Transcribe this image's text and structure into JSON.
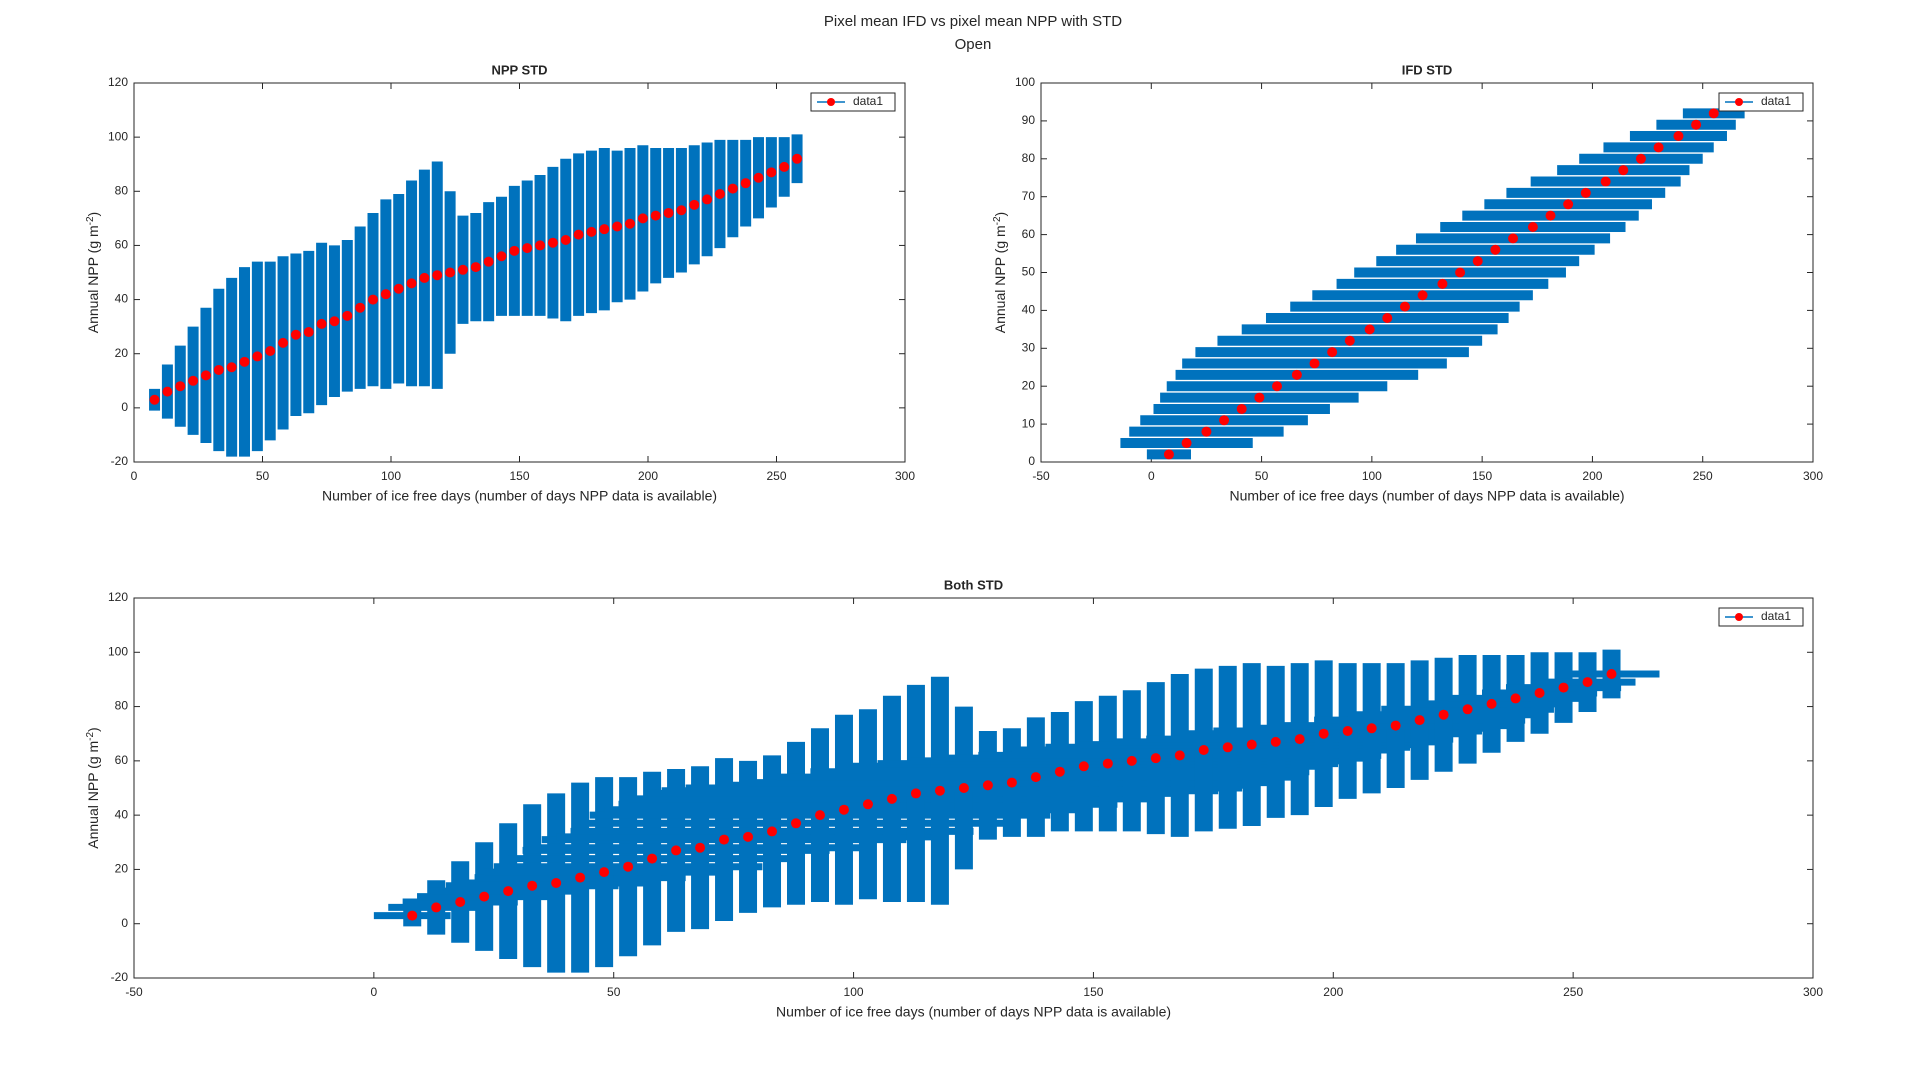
{
  "title": "Pixel mean IFD vs pixel mean NPP with STD",
  "subtitle": "Open",
  "chart_data": [
    {
      "type": "errorbar",
      "title": "NPP STD",
      "xlabel": "Number of ice free days (number of days NPP data is available)",
      "ylabel": [
        "Annual NPP (g m",
        "-2",
        ")"
      ],
      "xlim": [
        0,
        300
      ],
      "xticks": [
        0,
        50,
        100,
        150,
        200,
        250,
        300
      ],
      "ylim": [
        -20,
        120
      ],
      "yticks": [
        -20,
        0,
        20,
        40,
        60,
        80,
        100,
        120
      ],
      "grid": false,
      "legend": "northeast",
      "series": [
        {
          "name": "data1",
          "color": "#ff0000",
          "error_color": "#0072bd",
          "x": [
            8,
            13,
            18,
            23,
            28,
            33,
            38,
            43,
            48,
            53,
            58,
            63,
            68,
            73,
            78,
            83,
            88,
            93,
            98,
            103,
            108,
            113,
            118,
            123,
            128,
            133,
            138,
            143,
            148,
            153,
            158,
            163,
            168,
            173,
            178,
            183,
            188,
            193,
            198,
            203,
            208,
            213,
            218,
            223,
            228,
            233,
            238,
            243,
            248,
            253,
            258
          ],
          "values": [
            3,
            6,
            8,
            10,
            12,
            14,
            15,
            17,
            19,
            21,
            24,
            27,
            28,
            31,
            32,
            34,
            37,
            40,
            42,
            44,
            46,
            48,
            49,
            50,
            51,
            52,
            54,
            56,
            58,
            59,
            60,
            61,
            62,
            64,
            65,
            66,
            67,
            68,
            70,
            71,
            72,
            73,
            75,
            77,
            79,
            81,
            83,
            85,
            87,
            89,
            92
          ],
          "yerr": [
            4,
            10,
            15,
            20,
            25,
            30,
            33,
            35,
            35,
            33,
            32,
            30,
            30,
            30,
            28,
            28,
            30,
            32,
            35,
            35,
            38,
            40,
            42,
            30,
            20,
            20,
            22,
            22,
            24,
            25,
            26,
            28,
            30,
            30,
            30,
            30,
            28,
            28,
            27,
            25,
            24,
            23,
            22,
            21,
            20,
            18,
            16,
            15,
            13,
            11,
            9
          ]
        }
      ]
    },
    {
      "type": "errorbar",
      "title": "IFD STD",
      "xlabel": "Number of ice free days (number of days NPP data is available)",
      "ylabel": [
        "Annual NPP (g m",
        "-2",
        ")"
      ],
      "xlim": [
        -50,
        300
      ],
      "xticks": [
        -50,
        0,
        50,
        100,
        150,
        200,
        250,
        300
      ],
      "ylim": [
        0,
        100
      ],
      "yticks": [
        0,
        10,
        20,
        30,
        40,
        50,
        60,
        70,
        80,
        90,
        100
      ],
      "grid": false,
      "legend": "northeast",
      "series": [
        {
          "name": "data1",
          "color": "#ff0000",
          "error_color": "#0072bd",
          "x": [
            8,
            16,
            25,
            33,
            41,
            49,
            57,
            66,
            74,
            82,
            90,
            99,
            107,
            115,
            123,
            132,
            140,
            148,
            156,
            164,
            173,
            181,
            189,
            197,
            206,
            214,
            222,
            230,
            239,
            247,
            255
          ],
          "values": [
            2,
            5,
            8,
            11,
            14,
            17,
            20,
            23,
            26,
            29,
            32,
            35,
            38,
            41,
            44,
            47,
            50,
            53,
            56,
            59,
            62,
            65,
            68,
            71,
            74,
            77,
            80,
            83,
            86,
            89,
            92
          ],
          "xerr": [
            10,
            30,
            35,
            38,
            40,
            45,
            50,
            55,
            60,
            62,
            60,
            58,
            55,
            52,
            50,
            48,
            48,
            46,
            45,
            44,
            42,
            40,
            38,
            36,
            34,
            30,
            28,
            25,
            22,
            18,
            14
          ]
        }
      ]
    },
    {
      "type": "errorbar",
      "title": "Both STD",
      "xlabel": "Number of ice free days (number of days NPP data is available)",
      "ylabel": [
        "Annual NPP (g m",
        "-2",
        ")"
      ],
      "xlim": [
        -50,
        300
      ],
      "xticks": [
        -50,
        0,
        50,
        100,
        150,
        200,
        250,
        300
      ],
      "ylim": [
        -20,
        120
      ],
      "yticks": [
        -20,
        0,
        20,
        40,
        60,
        80,
        100,
        120
      ],
      "grid": false,
      "legend": "northeast",
      "series": [
        {
          "name": "data1",
          "color": "#ff0000",
          "error_color": "#0072bd",
          "x": [
            8,
            13,
            18,
            23,
            28,
            33,
            38,
            43,
            48,
            53,
            58,
            63,
            68,
            73,
            78,
            83,
            88,
            93,
            98,
            103,
            108,
            113,
            118,
            123,
            128,
            133,
            138,
            143,
            148,
            153,
            158,
            163,
            168,
            173,
            178,
            183,
            188,
            193,
            198,
            203,
            208,
            213,
            218,
            223,
            228,
            233,
            238,
            243,
            248,
            253,
            258
          ],
          "values": [
            3,
            6,
            8,
            10,
            12,
            14,
            15,
            17,
            19,
            21,
            24,
            27,
            28,
            31,
            32,
            34,
            37,
            40,
            42,
            44,
            46,
            48,
            49,
            50,
            51,
            52,
            54,
            56,
            58,
            59,
            60,
            61,
            62,
            64,
            65,
            66,
            67,
            68,
            70,
            71,
            72,
            73,
            75,
            77,
            79,
            81,
            83,
            85,
            87,
            89,
            92
          ],
          "yerr": [
            4,
            10,
            15,
            20,
            25,
            30,
            33,
            35,
            35,
            33,
            32,
            30,
            30,
            30,
            28,
            28,
            30,
            32,
            35,
            35,
            38,
            40,
            42,
            30,
            20,
            20,
            22,
            22,
            24,
            25,
            26,
            28,
            30,
            30,
            30,
            30,
            28,
            28,
            27,
            25,
            24,
            23,
            22,
            21,
            20,
            18,
            16,
            15,
            13,
            11,
            9
          ],
          "xerr": [
            8,
            10,
            12,
            14,
            16,
            18,
            20,
            22,
            25,
            28,
            30,
            32,
            35,
            38,
            40,
            42,
            45,
            48,
            50,
            52,
            55,
            56,
            58,
            58,
            56,
            55,
            54,
            52,
            50,
            48,
            46,
            44,
            42,
            40,
            38,
            36,
            34,
            32,
            30,
            28,
            26,
            24,
            22,
            20,
            18,
            16,
            14,
            12,
            12,
            10,
            10
          ]
        }
      ]
    }
  ]
}
